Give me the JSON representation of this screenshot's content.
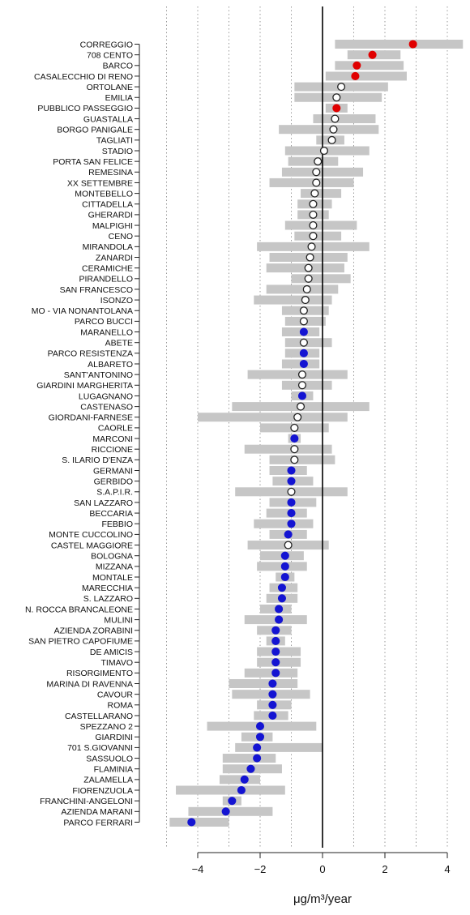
{
  "chart_data": {
    "type": "scatter",
    "title": "",
    "xlabel": "μg/m³/year",
    "ylabel": "",
    "xlim": [
      -5,
      4.5
    ],
    "xticks": [
      -4,
      -2,
      0,
      2,
      4
    ],
    "xtick_labels": [
      "−4",
      "−2",
      "0",
      "2",
      "4"
    ],
    "dotted_gridlines_x": [
      -5,
      -4,
      -3,
      -2,
      -1,
      1,
      2,
      3,
      4
    ],
    "zero_line": 0,
    "colors": {
      "increase_significant": "#e00000",
      "decrease_significant": "#1414d2",
      "not_significant_fill": "#ffffff",
      "not_significant_stroke": "#222222",
      "interval_bar": "#c6c6c6",
      "gridline": "#9a9a9a",
      "zero_line": "#000000"
    },
    "status_legend": {
      "increase": "significant increase (red filled dot)",
      "decrease": "significant decrease (blue filled dot)",
      "ns": "not significant (open circle)"
    },
    "series": [
      {
        "station": "CORREGGIO",
        "estimate": 2.9,
        "ci_low": 0.4,
        "ci_high": 4.5,
        "status": "increase"
      },
      {
        "station": "708 CENTO",
        "estimate": 1.6,
        "ci_low": 0.8,
        "ci_high": 2.5,
        "status": "increase"
      },
      {
        "station": "BARCO",
        "estimate": 1.1,
        "ci_low": 0.4,
        "ci_high": 2.6,
        "status": "increase"
      },
      {
        "station": "CASALECCHIO DI RENO",
        "estimate": 1.05,
        "ci_low": 0.1,
        "ci_high": 2.7,
        "status": "increase"
      },
      {
        "station": "ORTOLANE",
        "estimate": 0.6,
        "ci_low": -0.9,
        "ci_high": 2.1,
        "status": "ns"
      },
      {
        "station": "EMILIA",
        "estimate": 0.45,
        "ci_low": -0.9,
        "ci_high": 1.9,
        "status": "ns"
      },
      {
        "station": "PUBBLICO PASSEGGIO",
        "estimate": 0.45,
        "ci_low": 0.1,
        "ci_high": 0.8,
        "status": "increase"
      },
      {
        "station": "GUASTALLA",
        "estimate": 0.4,
        "ci_low": -0.3,
        "ci_high": 1.7,
        "status": "ns"
      },
      {
        "station": "BORGO PANIGALE",
        "estimate": 0.35,
        "ci_low": -1.4,
        "ci_high": 1.8,
        "status": "ns"
      },
      {
        "station": "TAGLIATI",
        "estimate": 0.3,
        "ci_low": -0.2,
        "ci_high": 0.7,
        "status": "ns"
      },
      {
        "station": "STADIO",
        "estimate": 0.05,
        "ci_low": -1.2,
        "ci_high": 1.5,
        "status": "ns"
      },
      {
        "station": "PORTA SAN FELICE",
        "estimate": -0.15,
        "ci_low": -1.1,
        "ci_high": 0.5,
        "status": "ns"
      },
      {
        "station": "REMESINA",
        "estimate": -0.2,
        "ci_low": -1.3,
        "ci_high": 1.3,
        "status": "ns"
      },
      {
        "station": "XX SETTEMBRE",
        "estimate": -0.2,
        "ci_low": -1.7,
        "ci_high": 1.0,
        "status": "ns"
      },
      {
        "station": "MONTEBELLO",
        "estimate": -0.25,
        "ci_low": -0.7,
        "ci_high": 0.6,
        "status": "ns"
      },
      {
        "station": "CITTADELLA",
        "estimate": -0.3,
        "ci_low": -0.8,
        "ci_high": 0.3,
        "status": "ns"
      },
      {
        "station": "GHERARDI",
        "estimate": -0.3,
        "ci_low": -0.8,
        "ci_high": 0.2,
        "status": "ns"
      },
      {
        "station": "MALPIGHI",
        "estimate": -0.3,
        "ci_low": -1.2,
        "ci_high": 1.1,
        "status": "ns"
      },
      {
        "station": "CENO",
        "estimate": -0.3,
        "ci_low": -0.9,
        "ci_high": 0.6,
        "status": "ns"
      },
      {
        "station": "MIRANDOLA",
        "estimate": -0.35,
        "ci_low": -2.1,
        "ci_high": 1.5,
        "status": "ns"
      },
      {
        "station": "ZANARDI",
        "estimate": -0.4,
        "ci_low": -1.7,
        "ci_high": 0.8,
        "status": "ns"
      },
      {
        "station": "CERAMICHE",
        "estimate": -0.45,
        "ci_low": -1.8,
        "ci_high": 0.7,
        "status": "ns"
      },
      {
        "station": "PIRANDELLO",
        "estimate": -0.45,
        "ci_low": -1.0,
        "ci_high": 0.9,
        "status": "ns"
      },
      {
        "station": "SAN FRANCESCO",
        "estimate": -0.5,
        "ci_low": -1.8,
        "ci_high": 0.5,
        "status": "ns"
      },
      {
        "station": "ISONZO",
        "estimate": -0.55,
        "ci_low": -2.2,
        "ci_high": 0.3,
        "status": "ns"
      },
      {
        "station": "MO - VIA NONANTOLANA",
        "estimate": -0.6,
        "ci_low": -1.3,
        "ci_high": 0.2,
        "status": "ns"
      },
      {
        "station": "PARCO BUCCI",
        "estimate": -0.6,
        "ci_low": -1.2,
        "ci_high": 0.1,
        "status": "ns"
      },
      {
        "station": "MARANELLO",
        "estimate": -0.6,
        "ci_low": -1.3,
        "ci_high": -0.1,
        "status": "decrease"
      },
      {
        "station": "ABETE",
        "estimate": -0.6,
        "ci_low": -1.2,
        "ci_high": 0.3,
        "status": "ns"
      },
      {
        "station": "PARCO RESISTENZA",
        "estimate": -0.6,
        "ci_low": -1.2,
        "ci_high": -0.1,
        "status": "decrease"
      },
      {
        "station": "ALBARETO",
        "estimate": -0.6,
        "ci_low": -1.3,
        "ci_high": -0.1,
        "status": "decrease"
      },
      {
        "station": "SANT'ANTONINO",
        "estimate": -0.65,
        "ci_low": -2.4,
        "ci_high": 0.8,
        "status": "ns"
      },
      {
        "station": "GIARDINI MARGHERITA",
        "estimate": -0.65,
        "ci_low": -1.3,
        "ci_high": 0.3,
        "status": "ns"
      },
      {
        "station": "LUGAGNANO",
        "estimate": -0.65,
        "ci_low": -1.0,
        "ci_high": -0.3,
        "status": "decrease"
      },
      {
        "station": "CASTENASO",
        "estimate": -0.7,
        "ci_low": -2.9,
        "ci_high": 1.5,
        "status": "ns"
      },
      {
        "station": "GIORDANI-FARNESE",
        "estimate": -0.8,
        "ci_low": -4.0,
        "ci_high": 0.8,
        "status": "ns"
      },
      {
        "station": "CAORLE",
        "estimate": -0.9,
        "ci_low": -2.0,
        "ci_high": 0.2,
        "status": "ns"
      },
      {
        "station": "MARCONI",
        "estimate": -0.9,
        "ci_low": -1.1,
        "ci_high": -0.7,
        "status": "decrease"
      },
      {
        "station": "RICCIONE",
        "estimate": -0.9,
        "ci_low": -2.5,
        "ci_high": 0.3,
        "status": "ns"
      },
      {
        "station": "S. ILARIO D'ENZA",
        "estimate": -0.9,
        "ci_low": -1.7,
        "ci_high": 0.4,
        "status": "ns"
      },
      {
        "station": "GERMANI",
        "estimate": -1.0,
        "ci_low": -1.7,
        "ci_high": -0.5,
        "status": "decrease"
      },
      {
        "station": "GERBIDO",
        "estimate": -1.0,
        "ci_low": -1.6,
        "ci_high": -0.3,
        "status": "decrease"
      },
      {
        "station": "S.A.P.I.R.",
        "estimate": -1.0,
        "ci_low": -2.8,
        "ci_high": 0.8,
        "status": "ns"
      },
      {
        "station": "SAN LAZZARO",
        "estimate": -1.0,
        "ci_low": -1.7,
        "ci_high": -0.2,
        "status": "decrease"
      },
      {
        "station": "BECCARIA",
        "estimate": -1.0,
        "ci_low": -1.8,
        "ci_high": -0.5,
        "status": "decrease"
      },
      {
        "station": "FEBBIO",
        "estimate": -1.0,
        "ci_low": -2.2,
        "ci_high": -0.3,
        "status": "decrease"
      },
      {
        "station": "MONTE CUCCOLINO",
        "estimate": -1.1,
        "ci_low": -1.7,
        "ci_high": -0.5,
        "status": "decrease"
      },
      {
        "station": "CASTEL MAGGIORE",
        "estimate": -1.1,
        "ci_low": -2.4,
        "ci_high": 0.2,
        "status": "ns"
      },
      {
        "station": "BOLOGNA",
        "estimate": -1.2,
        "ci_low": -2.0,
        "ci_high": -0.6,
        "status": "decrease"
      },
      {
        "station": "MIZZANA",
        "estimate": -1.2,
        "ci_low": -2.1,
        "ci_high": -0.5,
        "status": "decrease"
      },
      {
        "station": "MONTALE",
        "estimate": -1.2,
        "ci_low": -1.5,
        "ci_high": -0.9,
        "status": "decrease"
      },
      {
        "station": "MARECCHIA",
        "estimate": -1.3,
        "ci_low": -1.7,
        "ci_high": -0.8,
        "status": "decrease"
      },
      {
        "station": "S. LAZZARO",
        "estimate": -1.3,
        "ci_low": -1.8,
        "ci_high": -0.8,
        "status": "decrease"
      },
      {
        "station": "N. ROCCA BRANCALEONE",
        "estimate": -1.4,
        "ci_low": -2.0,
        "ci_high": -1.0,
        "status": "decrease"
      },
      {
        "station": "MULINI",
        "estimate": -1.4,
        "ci_low": -2.5,
        "ci_high": -0.5,
        "status": "decrease"
      },
      {
        "station": "AZIENDA ZORABINI",
        "estimate": -1.5,
        "ci_low": -2.1,
        "ci_high": -1.0,
        "status": "decrease"
      },
      {
        "station": "SAN PIETRO CAPOFIUME",
        "estimate": -1.5,
        "ci_low": -1.8,
        "ci_high": -1.2,
        "status": "decrease"
      },
      {
        "station": "DE AMICIS",
        "estimate": -1.5,
        "ci_low": -2.1,
        "ci_high": -0.7,
        "status": "decrease"
      },
      {
        "station": "TIMAVO",
        "estimate": -1.5,
        "ci_low": -2.1,
        "ci_high": -0.7,
        "status": "decrease"
      },
      {
        "station": "RISORGIMENTO",
        "estimate": -1.5,
        "ci_low": -2.5,
        "ci_high": -0.8,
        "status": "decrease"
      },
      {
        "station": "MARINA DI RAVENNA",
        "estimate": -1.6,
        "ci_low": -3.0,
        "ci_high": -0.8,
        "status": "decrease"
      },
      {
        "station": "CAVOUR",
        "estimate": -1.6,
        "ci_low": -2.9,
        "ci_high": -0.4,
        "status": "decrease"
      },
      {
        "station": "ROMA",
        "estimate": -1.6,
        "ci_low": -2.1,
        "ci_high": -1.0,
        "status": "decrease"
      },
      {
        "station": "CASTELLARANO",
        "estimate": -1.6,
        "ci_low": -2.2,
        "ci_high": -1.1,
        "status": "decrease"
      },
      {
        "station": "SPEZZANO 2",
        "estimate": -2.0,
        "ci_low": -3.7,
        "ci_high": -0.2,
        "status": "decrease"
      },
      {
        "station": "GIARDINI",
        "estimate": -2.0,
        "ci_low": -2.6,
        "ci_high": -1.6,
        "status": "decrease"
      },
      {
        "station": "701 S.GIOVANNI",
        "estimate": -2.1,
        "ci_low": -2.8,
        "ci_high": 0.0,
        "status": "decrease"
      },
      {
        "station": "SASSUOLO",
        "estimate": -2.1,
        "ci_low": -3.2,
        "ci_high": -1.5,
        "status": "decrease"
      },
      {
        "station": "FLAMINIA",
        "estimate": -2.3,
        "ci_low": -3.2,
        "ci_high": -1.3,
        "status": "decrease"
      },
      {
        "station": "ZALAMELLA",
        "estimate": -2.5,
        "ci_low": -3.3,
        "ci_high": -2.0,
        "status": "decrease"
      },
      {
        "station": "FIORENZUOLA",
        "estimate": -2.6,
        "ci_low": -4.7,
        "ci_high": -1.2,
        "status": "decrease"
      },
      {
        "station": "FRANCHINI-ANGELONI",
        "estimate": -2.9,
        "ci_low": -3.2,
        "ci_high": -2.6,
        "status": "decrease"
      },
      {
        "station": "AZIENDA MARANI",
        "estimate": -3.1,
        "ci_low": -4.3,
        "ci_high": -1.6,
        "status": "decrease"
      },
      {
        "station": "PARCO FERRARI",
        "estimate": -4.2,
        "ci_low": -4.9,
        "ci_high": -3.0,
        "status": "decrease"
      }
    ]
  }
}
